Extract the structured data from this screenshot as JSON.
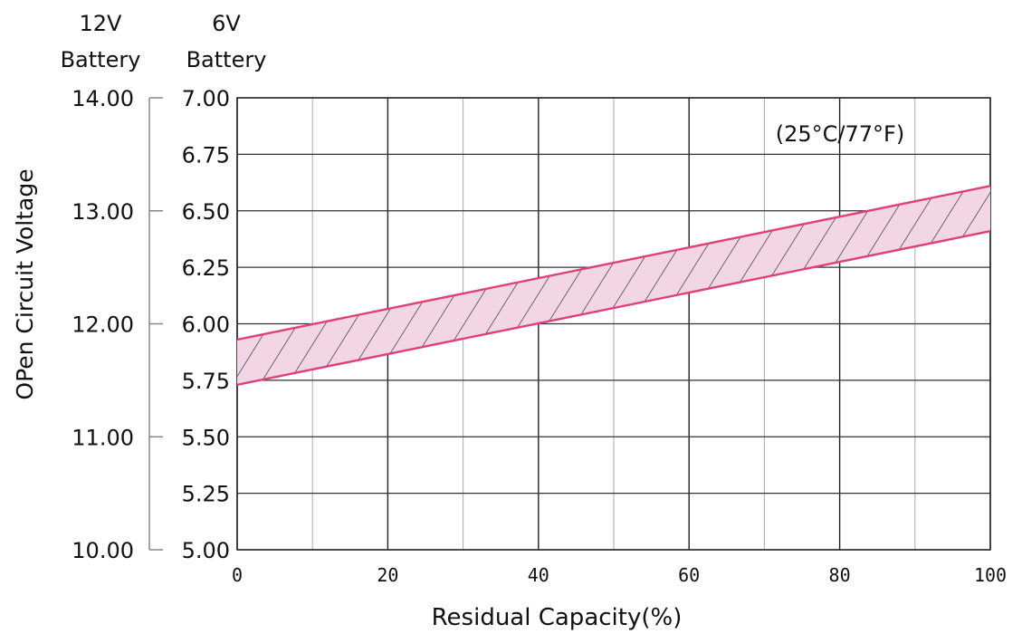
{
  "chart_data": {
    "type": "area",
    "title": "",
    "annotation": "(25°C/77°F)",
    "xlabel": "Residual Capacity(%)",
    "ylabel": "OPen Circuit Voltage",
    "axis_header_12v": [
      "12V",
      "Battery"
    ],
    "axis_header_6v": [
      "6V",
      "Battery"
    ],
    "x_ticks": [
      "0",
      "20",
      "40",
      "60",
      "80",
      "100"
    ],
    "y_ticks_12v": [
      "14.00",
      "13.00",
      "12.00",
      "11.00",
      "10.00"
    ],
    "y_ticks_6v": [
      "7.00",
      "6.75",
      "6.50",
      "6.25",
      "6.00",
      "5.75",
      "5.50",
      "5.25",
      "5.00"
    ],
    "xlim": [
      0,
      100
    ],
    "ylim_6v": [
      5.0,
      7.0
    ],
    "ylim_12v": [
      10.0,
      14.0
    ],
    "grid": true,
    "series": [
      {
        "x": [
          0,
          100
        ],
        "values": [
          5.93,
          6.61
        ]
      },
      {
        "x": [
          0,
          100
        ],
        "values": [
          5.73,
          6.41
        ]
      }
    ],
    "band_color": "#e0407a",
    "band_fill": "#f3d6e3"
  }
}
